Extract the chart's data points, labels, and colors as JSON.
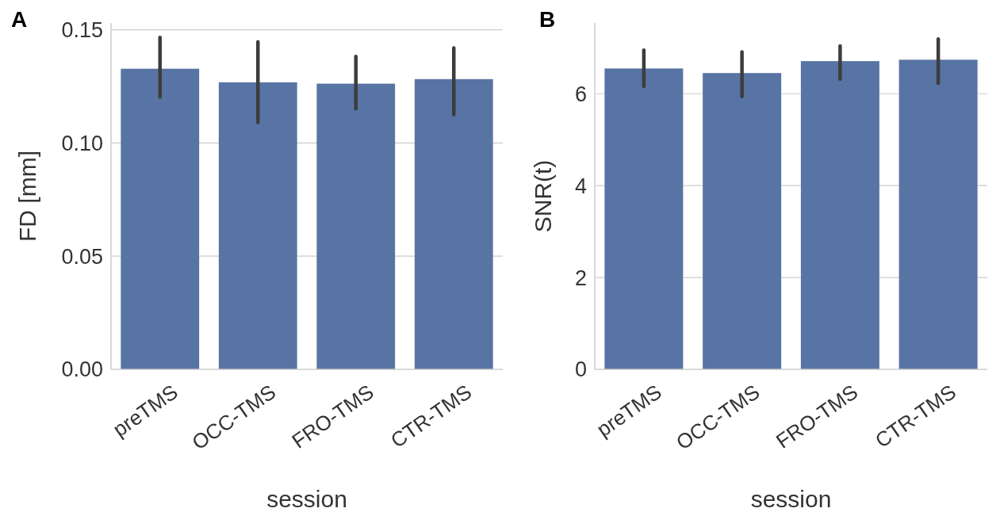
{
  "chart_data": [
    {
      "type": "bar",
      "annotations": [
        "A"
      ],
      "xlabel": "session",
      "ylabel": "FD [mm]",
      "categories": [
        "preTMS",
        "OCC-TMS",
        "FRO-TMS",
        "CTR-TMS"
      ],
      "values": [
        0.1328,
        0.1268,
        0.1262,
        0.1282
      ],
      "errors": [
        [
          0.1203,
          0.1466
        ],
        [
          0.1091,
          0.1447
        ],
        [
          0.1151,
          0.1382
        ],
        [
          0.1125,
          0.142
        ]
      ],
      "color": "#5874a4",
      "ylim": [
        0,
        0.153
      ],
      "yticks": [
        {
          "value": 0,
          "label": "0.00"
        },
        {
          "value": 0.05,
          "label": "0.05"
        },
        {
          "value": 0.1,
          "label": "0.10"
        },
        {
          "value": 0.15,
          "label": "0.15"
        }
      ],
      "grid": "y"
    },
    {
      "type": "bar",
      "annotations": [
        "B"
      ],
      "xlabel": "session",
      "ylabel": "SNR(t)",
      "categories": [
        "preTMS",
        "OCC-TMS",
        "FRO-TMS",
        "CTR-TMS"
      ],
      "values": [
        6.55,
        6.45,
        6.71,
        6.74
      ],
      "errors": [
        [
          6.16,
          6.95
        ],
        [
          5.94,
          6.91
        ],
        [
          6.32,
          7.04
        ],
        [
          6.23,
          7.19
        ]
      ],
      "color": "#5874a4",
      "ylim": [
        0,
        7.54
      ],
      "yticks": [
        0,
        2,
        4,
        6
      ],
      "grid": "y"
    }
  ]
}
